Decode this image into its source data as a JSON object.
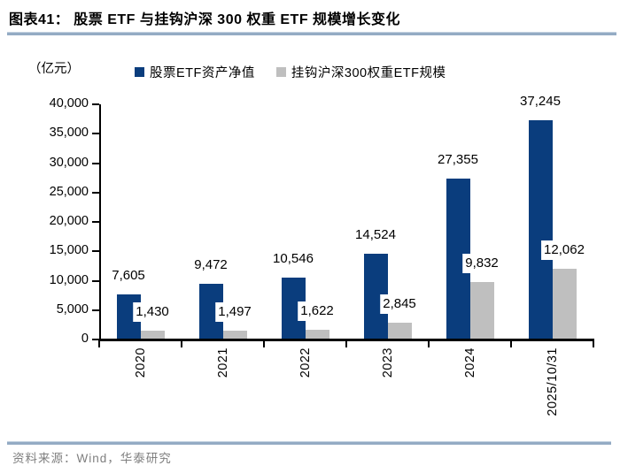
{
  "header": {
    "title": "图表41：  股票 ETF 与挂钩沪深 300 权重 ETF 规模增长变化"
  },
  "chart_data": {
    "type": "bar",
    "title": "股票 ETF 与挂钩沪深 300 权重 ETF 规模增长变化",
    "unit_label": "（亿元）",
    "categories": [
      "2020",
      "2021",
      "2022",
      "2023",
      "2024",
      "2025/10/31"
    ],
    "series": [
      {
        "name": "股票ETF资产净值",
        "color": "#0a3d7d",
        "values": [
          7605,
          9472,
          10546,
          14524,
          27355,
          37245
        ],
        "value_labels": [
          "7,605",
          "9,472",
          "10,546",
          "14,524",
          "27,355",
          "37,245"
        ]
      },
      {
        "name": "挂钩沪深300权重ETF规模",
        "color": "#bfbfbf",
        "values": [
          1430,
          1497,
          1622,
          2845,
          9832,
          12062
        ],
        "value_labels": [
          "1,430",
          "1,497",
          "1,622",
          "2,845",
          "9,832",
          "12,062"
        ]
      }
    ],
    "ylim": [
      0,
      40000
    ],
    "ytick_interval": 5000,
    "ytick_labels": [
      "0",
      "5,000",
      "10,000",
      "15,000",
      "20,000",
      "25,000",
      "30,000",
      "35,000",
      "40,000"
    ],
    "legend_position": "top",
    "grid": false
  },
  "footer": {
    "source": "资料来源：Wind，华泰研究"
  },
  "colors": {
    "series1": "#0a3d7d",
    "series2": "#bfbfbf",
    "rule": "#94abc4",
    "axis": "#000000",
    "source_text": "#7f7f7f"
  }
}
